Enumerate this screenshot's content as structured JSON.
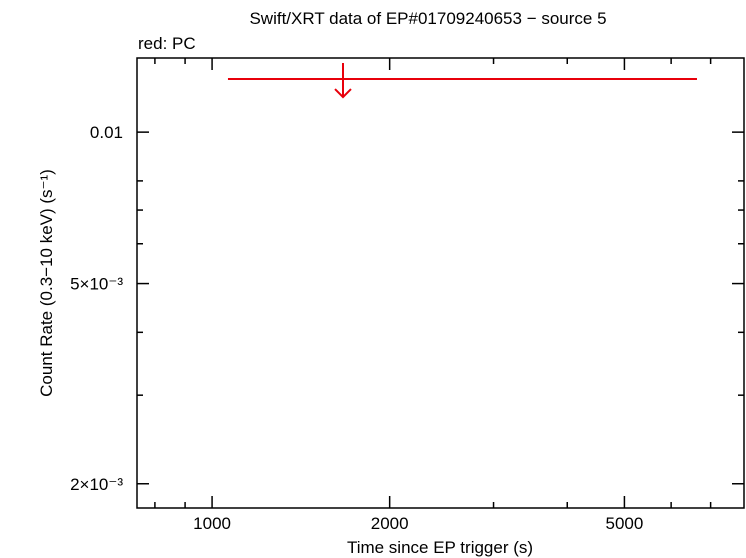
{
  "chart_data": {
    "type": "scatter",
    "title": "Swift/XRT data of EP#01709240653 − source 5",
    "subtitle": "red: PC",
    "x_label": "Time since EP trigger (s)",
    "y_label": "Count Rate (0.3−10 keV) (s⁻¹)",
    "xscale": "log",
    "yscale": "log",
    "xlim": [
      746,
      7974
    ],
    "ylim": [
      0.00179,
      0.01404
    ],
    "xticks": [
      1000,
      2000,
      5000
    ],
    "xminorticks": [
      800,
      900,
      3000,
      4000,
      6000,
      7000
    ],
    "yticks": [
      {
        "value": 0.002,
        "label": "2×10⁻³"
      },
      {
        "value": 0.005,
        "label": "5×10⁻³"
      },
      {
        "value": 0.01,
        "label": "0.01"
      }
    ],
    "yminorticks": [
      0.003,
      0.004,
      0.006,
      0.007,
      0.008
    ],
    "series": [
      {
        "color": "#e8000b",
        "x": [
          1667
        ],
        "x_low": [
          1064
        ],
        "x_high": [
          6637
        ],
        "values": [
          0.01275
        ],
        "upper_limit": true
      }
    ]
  }
}
